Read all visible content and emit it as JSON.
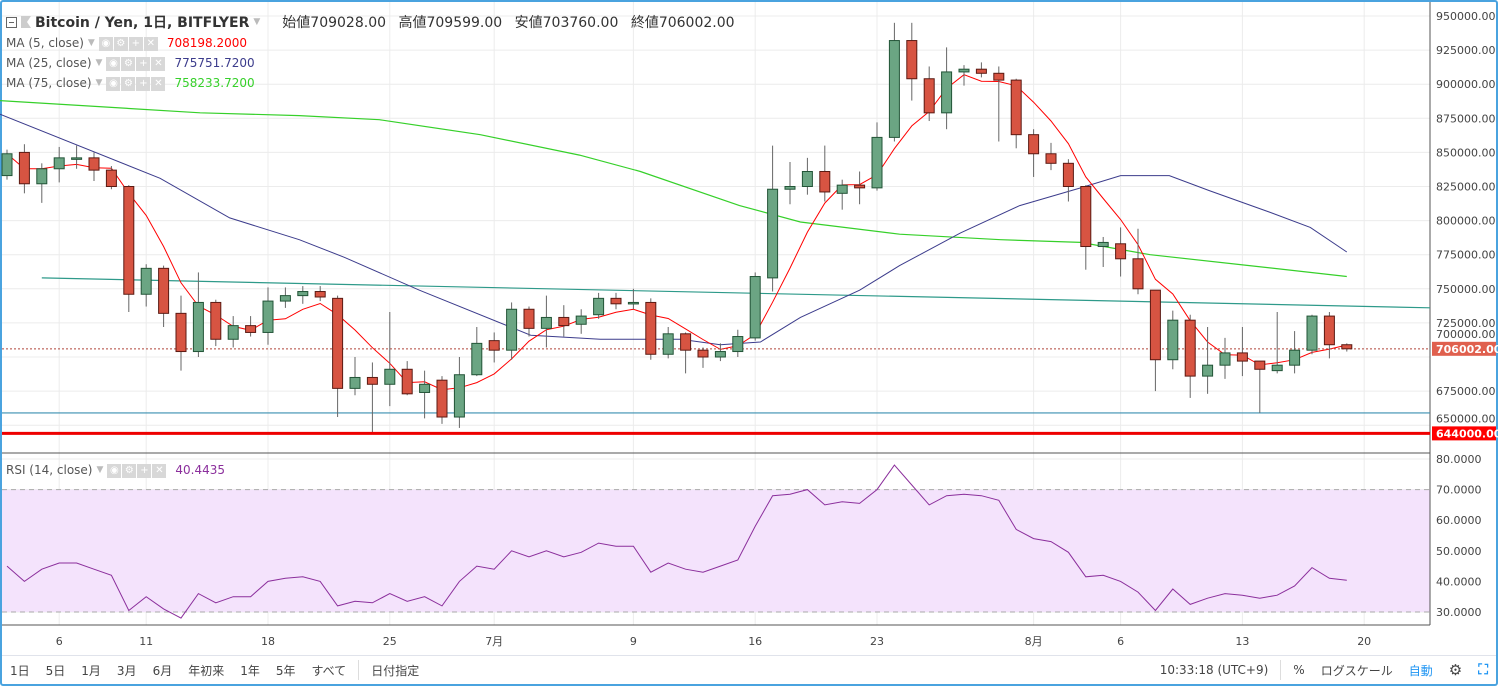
{
  "header": {
    "symbol": "Bitcoin / Yen, 1日, BITFLYER",
    "open_label": "始値",
    "open": "709028.00",
    "high_label": "高値",
    "high": "709599.00",
    "low_label": "安値",
    "low": "703760.00",
    "close_label": "終値",
    "close": "706002.00"
  },
  "indicators": [
    {
      "label": "MA (5, close)",
      "value": "708198.2000",
      "color": "#ff0000"
    },
    {
      "label": "MA (25, close)",
      "value": "775751.7200",
      "color": "#3c3c8c"
    },
    {
      "label": "MA (75, close)",
      "value": "758233.7200",
      "color": "#36d02a"
    }
  ],
  "rsi": {
    "label": "RSI (14, close)",
    "value": "40.4435",
    "color": "#8b2f9c"
  },
  "toolbar": {
    "ranges": [
      "1日",
      "5日",
      "1月",
      "3月",
      "6月",
      "年初来",
      "1年",
      "5年",
      "すべて"
    ],
    "goto": "日付指定",
    "time": "10:33:18 (UTC+9)",
    "percent": "%",
    "log": "ログスケール",
    "auto": "自動"
  },
  "colors": {
    "up": "#6ba583",
    "up_border": "#225437",
    "down": "#d75442",
    "down_border": "#5b1a13",
    "last_price_tag": "#e0604e",
    "level_tag": "#ff0000"
  },
  "chart_data": {
    "type": "candlestick",
    "unit": "thousand JPY",
    "x_ticks": [
      {
        "i": 3,
        "label": "6"
      },
      {
        "i": 8,
        "label": "11"
      },
      {
        "i": 15,
        "label": "18"
      },
      {
        "i": 22,
        "label": "25"
      },
      {
        "i": 28,
        "label": "7月"
      },
      {
        "i": 36,
        "label": "9"
      },
      {
        "i": 43,
        "label": "16"
      },
      {
        "i": 50,
        "label": "23"
      },
      {
        "i": 59,
        "label": "8月"
      },
      {
        "i": 64,
        "label": "6"
      },
      {
        "i": 71,
        "label": "13"
      },
      {
        "i": 78,
        "label": "20"
      }
    ],
    "price_ticks": [
      "950000.00",
      "925000.00",
      "900000.00",
      "875000.00",
      "850000.00",
      "825000.00",
      "800000.00",
      "775000.00",
      "750000.00",
      "725000.00",
      "700000.00",
      "675000.00",
      "650000.00"
    ],
    "price_tick_values": [
      950,
      925,
      900,
      875,
      850,
      825,
      800,
      775,
      750,
      725,
      700,
      675,
      650
    ],
    "last_price": {
      "value": 706.002,
      "label": "706002.00"
    },
    "level_line": {
      "value": 644,
      "label": "644000.00"
    },
    "support_line": 659,
    "trend_line": [
      [
        2,
        758
      ],
      [
        82,
        736
      ]
    ],
    "ohlc": [
      [
        833,
        852,
        830,
        849
      ],
      [
        850,
        856,
        820,
        827
      ],
      [
        827,
        842,
        813,
        838
      ],
      [
        838,
        854,
        828,
        846
      ],
      [
        845,
        855,
        838,
        846
      ],
      [
        846,
        850,
        829,
        837
      ],
      [
        837,
        840,
        823,
        825
      ],
      [
        825,
        826,
        733,
        746
      ],
      [
        746,
        768,
        737,
        765
      ],
      [
        765,
        767,
        722,
        732
      ],
      [
        732,
        745,
        690,
        704
      ],
      [
        704,
        762,
        700,
        740
      ],
      [
        740,
        742,
        708,
        713
      ],
      [
        713,
        730,
        707,
        723
      ],
      [
        723,
        730,
        715,
        718
      ],
      [
        718,
        751,
        709,
        741
      ],
      [
        741,
        751,
        736,
        745
      ],
      [
        745,
        752,
        739,
        748
      ],
      [
        748,
        752,
        741,
        744
      ],
      [
        743,
        745,
        656,
        677
      ],
      [
        677,
        700,
        672,
        685
      ],
      [
        685,
        696,
        644,
        680
      ],
      [
        680,
        733,
        664,
        691
      ],
      [
        691,
        697,
        672,
        673
      ],
      [
        674,
        690,
        655,
        680
      ],
      [
        683,
        686,
        651,
        656
      ],
      [
        656,
        700,
        648,
        687
      ],
      [
        687,
        722,
        686,
        710
      ],
      [
        712,
        718,
        696,
        705
      ],
      [
        705,
        740,
        698,
        735
      ],
      [
        735,
        737,
        715,
        721
      ],
      [
        721,
        745,
        707,
        729
      ],
      [
        729,
        738,
        715,
        723
      ],
      [
        724,
        735,
        717,
        730
      ],
      [
        731,
        747,
        728,
        743
      ],
      [
        743,
        747,
        735,
        739
      ],
      [
        739,
        750,
        735,
        740
      ],
      [
        740,
        743,
        698,
        702
      ],
      [
        702,
        722,
        699,
        717
      ],
      [
        717,
        718,
        688,
        705
      ],
      [
        705,
        707,
        692,
        700
      ],
      [
        700,
        710,
        697,
        704
      ],
      [
        704,
        720,
        700,
        715
      ],
      [
        714,
        762,
        712,
        759
      ],
      [
        758,
        855,
        748,
        823
      ],
      [
        823,
        843,
        812,
        825
      ],
      [
        825,
        846,
        819,
        836
      ],
      [
        836,
        855,
        814,
        821
      ],
      [
        820,
        830,
        808,
        826
      ],
      [
        826,
        836,
        812,
        824
      ],
      [
        824,
        872,
        822,
        861
      ],
      [
        861,
        945,
        858,
        932
      ],
      [
        932,
        945,
        888,
        904
      ],
      [
        904,
        913,
        873,
        879
      ],
      [
        879,
        927,
        867,
        909
      ],
      [
        909,
        914,
        899,
        911
      ],
      [
        911,
        916,
        905,
        908
      ],
      [
        908,
        913,
        858,
        903
      ],
      [
        903,
        904,
        853,
        863
      ],
      [
        863,
        867,
        832,
        849
      ],
      [
        849,
        857,
        837,
        842
      ],
      [
        842,
        845,
        814,
        825
      ],
      [
        825,
        826,
        764,
        781
      ],
      [
        781,
        788,
        766,
        784
      ],
      [
        783,
        795,
        759,
        772
      ],
      [
        772,
        794,
        746,
        750
      ],
      [
        749,
        749,
        675,
        698
      ],
      [
        698,
        734,
        691,
        727
      ],
      [
        727,
        731,
        670,
        686
      ],
      [
        686,
        722,
        673,
        694
      ],
      [
        694,
        714,
        684,
        703
      ],
      [
        703,
        722,
        686,
        697
      ],
      [
        697,
        696,
        659,
        691
      ],
      [
        690,
        733,
        688,
        694
      ],
      [
        694,
        719,
        688,
        705
      ],
      [
        705,
        731,
        702,
        730
      ],
      [
        730,
        733,
        699,
        709
      ],
      [
        709,
        710,
        704,
        706
      ]
    ],
    "ma25": [
      [
        -0.4,
        878
      ],
      [
        8.8,
        831
      ],
      [
        12.8,
        802
      ],
      [
        16.8,
        786
      ],
      [
        19.4,
        773
      ],
      [
        23.7,
        749
      ],
      [
        30.1,
        716
      ],
      [
        34.1,
        713
      ],
      [
        38.7,
        713
      ],
      [
        41,
        709
      ],
      [
        43.3,
        711
      ],
      [
        45.6,
        729
      ],
      [
        49,
        749
      ],
      [
        51.3,
        767
      ],
      [
        54.8,
        791
      ],
      [
        58.2,
        811
      ],
      [
        61.7,
        824
      ],
      [
        64,
        833
      ],
      [
        66.8,
        833
      ],
      [
        69.1,
        822
      ],
      [
        72.6,
        806
      ],
      [
        74.9,
        795
      ],
      [
        77,
        777
      ]
    ],
    "ma75": [
      [
        -0.4,
        888
      ],
      [
        11.1,
        879
      ],
      [
        16.8,
        877
      ],
      [
        21.4,
        874
      ],
      [
        27.2,
        863
      ],
      [
        32.9,
        848
      ],
      [
        36.4,
        836
      ],
      [
        42.1,
        811
      ],
      [
        45.6,
        799
      ],
      [
        51.3,
        790
      ],
      [
        57.1,
        786
      ],
      [
        61.7,
        784
      ],
      [
        65.7,
        775
      ],
      [
        71.4,
        767
      ],
      [
        77,
        759
      ]
    ],
    "rsi": {
      "ylim": [
        25,
        82
      ],
      "ticks": [
        "80.0000",
        "70.0000",
        "60.0000",
        "50.0000",
        "40.0000",
        "30.0000"
      ],
      "tick_values": [
        80,
        70,
        60,
        50,
        40,
        30
      ],
      "band": [
        30,
        70
      ],
      "values": [
        45,
        40,
        44,
        46,
        46,
        44,
        42,
        30.5,
        35,
        31,
        28,
        36,
        33,
        35,
        35,
        40,
        41,
        41.5,
        40,
        32,
        33.5,
        33,
        36,
        33.5,
        35,
        32,
        40,
        45,
        44,
        50,
        48,
        50,
        48,
        49.5,
        52.5,
        51.5,
        51.5,
        43,
        46,
        44,
        43,
        45,
        47,
        58,
        68,
        68.5,
        70,
        65,
        66,
        65.5,
        70,
        78,
        71.5,
        65,
        68,
        68.5,
        68,
        66.5,
        57,
        54,
        53,
        49.5,
        41.5,
        42,
        40,
        36.5,
        30.5,
        37.5,
        32.5,
        34.5,
        36,
        35.5,
        34.5,
        35.5,
        38.5,
        44.5,
        41,
        40.4
      ]
    }
  }
}
